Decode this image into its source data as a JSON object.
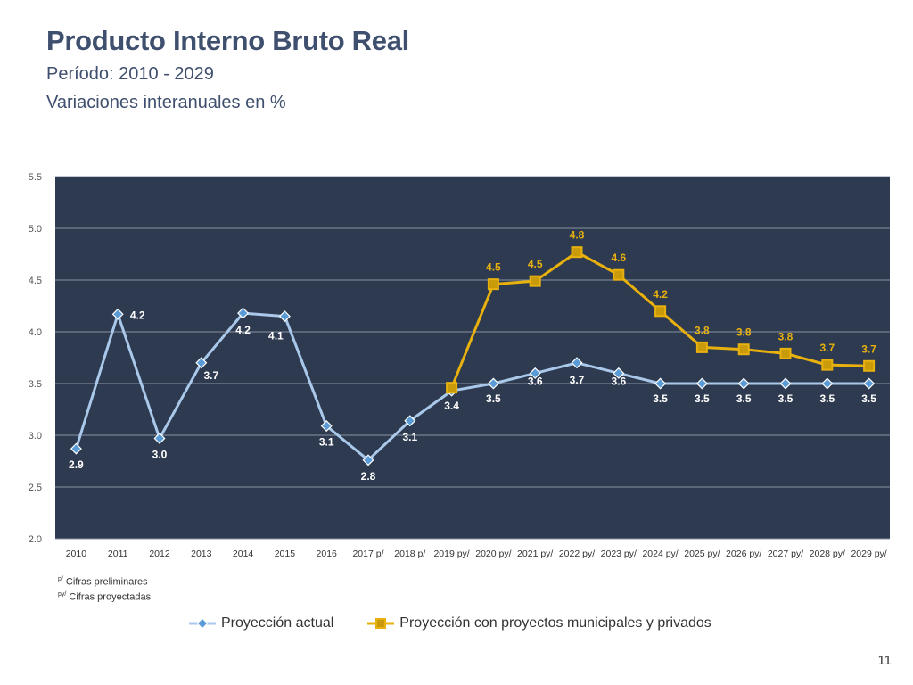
{
  "header": {
    "title": "Producto Interno Bruto Real",
    "subtitle1": "Período: 2010 - 2029",
    "subtitle2": "Variaciones interanuales en %"
  },
  "footnotes": {
    "prelim_mark": "p/",
    "prelim_text": "Cifras preliminares",
    "proj_mark": "py/",
    "proj_text": "Cifras proyectadas"
  },
  "page_number": "11",
  "colors": {
    "plot_background": "#2e3a4f",
    "actual": "#a9c8ea",
    "actual_marker": "#5b9bd5",
    "municipal": "#e8b10e",
    "municipal_marker": "#c99a0a",
    "actual_label": "#ffffff",
    "municipal_label": "#e8b10e"
  },
  "chart_data": {
    "type": "line",
    "title": "Producto Interno Bruto Real",
    "categories": [
      "2010",
      "2011",
      "2012",
      "2013",
      "2014",
      "2015",
      "2016",
      "2017 p/",
      "2018 p/",
      "2019 py/",
      "2020 py/",
      "2021 py/",
      "2022 py/",
      "2023 py/",
      "2024 py/",
      "2025 py/",
      "2026 py/",
      "2027 py/",
      "2028 py/",
      "2029 py/"
    ],
    "ylim": [
      2.0,
      5.5
    ],
    "yticks": [
      "2.0",
      "2.5",
      "3.0",
      "3.5",
      "4.0",
      "4.5",
      "5.0",
      "5.5"
    ],
    "grid": true,
    "legend_position": "bottom",
    "series": [
      {
        "name": "Proyección actual",
        "values": [
          2.87,
          4.17,
          2.97,
          3.7,
          4.18,
          4.15,
          3.09,
          2.76,
          3.14,
          3.43,
          3.5,
          3.6,
          3.7,
          3.6,
          3.5,
          3.5,
          3.5,
          3.5,
          3.5,
          3.5
        ],
        "labels": [
          "2.9",
          "4.2",
          "3.0",
          "3.7",
          "4.2",
          "4.1",
          "3.1",
          "2.8",
          "3.1",
          "3.4",
          "3.5",
          "3.6",
          "3.7",
          "3.6",
          "3.5",
          "3.5",
          "3.5",
          "3.5",
          "3.5",
          "3.5"
        ]
      },
      {
        "name": "Proyección con proyectos municipales y privados",
        "values": [
          null,
          null,
          null,
          null,
          null,
          null,
          null,
          null,
          null,
          3.46,
          4.46,
          4.49,
          4.77,
          4.55,
          4.2,
          3.85,
          3.83,
          3.79,
          3.68,
          3.67
        ],
        "labels": [
          null,
          null,
          null,
          null,
          null,
          null,
          null,
          null,
          null,
          null,
          "4.5",
          "4.5",
          "4.8",
          "4.6",
          "4.2",
          "3.8",
          "3.8",
          "3.8",
          "3.7",
          "3.7"
        ]
      }
    ]
  }
}
